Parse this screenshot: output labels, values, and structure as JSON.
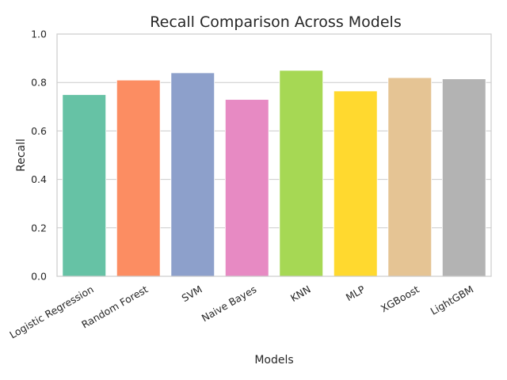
{
  "chart_data": {
    "type": "bar",
    "title": "Recall Comparison Across Models",
    "xlabel": "Models",
    "ylabel": "Recall",
    "ylim": [
      0,
      1.0
    ],
    "yticks": [
      "0.0",
      "0.2",
      "0.4",
      "0.6",
      "0.8",
      "1.0"
    ],
    "grid": "y",
    "categories": [
      "Logistic Regression",
      "Random Forest",
      "SVM",
      "Naive Bayes",
      "KNN",
      "MLP",
      "XGBoost",
      "LightGBM"
    ],
    "values": [
      0.75,
      0.81,
      0.84,
      0.73,
      0.85,
      0.765,
      0.82,
      0.815
    ],
    "colors": [
      "#66c2a5",
      "#fc8d62",
      "#8da0cb",
      "#e78ac3",
      "#a6d854",
      "#ffd92f",
      "#e5c494",
      "#b3b3b3"
    ]
  }
}
